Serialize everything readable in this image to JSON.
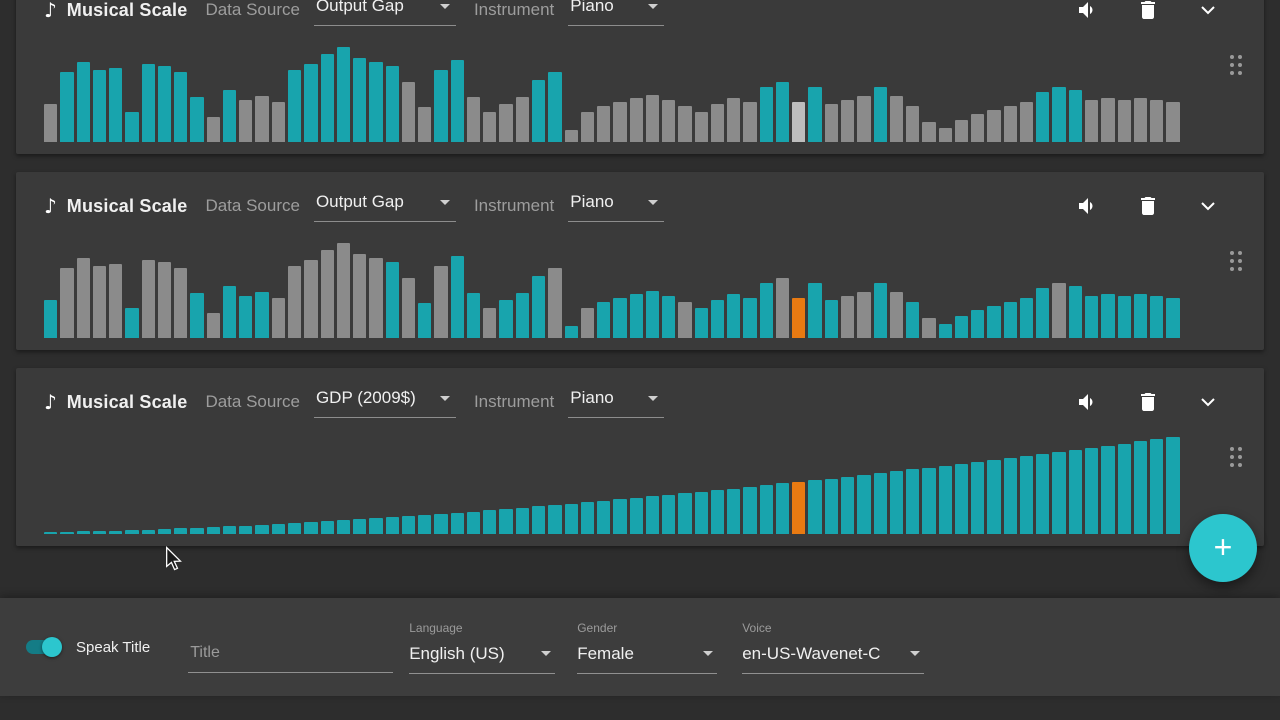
{
  "colors": {
    "t": "#18a4ad",
    "g": "#8b8b8b",
    "l": "#bdbdbd",
    "o": "#e87a12",
    "accent": "#2cc6ce"
  },
  "panels": [
    {
      "title": "Musical Scale",
      "data_source_label": "Data Source",
      "data_source_value": "Output Gap",
      "instrument_label": "Instrument",
      "instrument_value": "Piano",
      "chart_data": {
        "type": "bar",
        "bars": [
          [
            38,
            "g"
          ],
          [
            70,
            "t"
          ],
          [
            80,
            "t"
          ],
          [
            72,
            "t"
          ],
          [
            74,
            "t"
          ],
          [
            30,
            "t"
          ],
          [
            78,
            "t"
          ],
          [
            76,
            "t"
          ],
          [
            70,
            "t"
          ],
          [
            45,
            "t"
          ],
          [
            25,
            "g"
          ],
          [
            52,
            "t"
          ],
          [
            42,
            "g"
          ],
          [
            46,
            "g"
          ],
          [
            40,
            "g"
          ],
          [
            72,
            "t"
          ],
          [
            78,
            "t"
          ],
          [
            88,
            "t"
          ],
          [
            95,
            "t"
          ],
          [
            84,
            "t"
          ],
          [
            80,
            "t"
          ],
          [
            76,
            "t"
          ],
          [
            60,
            "g"
          ],
          [
            35,
            "g"
          ],
          [
            72,
            "t"
          ],
          [
            82,
            "t"
          ],
          [
            45,
            "g"
          ],
          [
            30,
            "g"
          ],
          [
            38,
            "g"
          ],
          [
            45,
            "g"
          ],
          [
            62,
            "t"
          ],
          [
            70,
            "t"
          ],
          [
            12,
            "g"
          ],
          [
            30,
            "g"
          ],
          [
            36,
            "g"
          ],
          [
            40,
            "g"
          ],
          [
            44,
            "g"
          ],
          [
            47,
            "g"
          ],
          [
            42,
            "g"
          ],
          [
            36,
            "g"
          ],
          [
            30,
            "g"
          ],
          [
            38,
            "g"
          ],
          [
            44,
            "g"
          ],
          [
            40,
            "g"
          ],
          [
            55,
            "t"
          ],
          [
            60,
            "t"
          ],
          [
            40,
            "l"
          ],
          [
            55,
            "t"
          ],
          [
            38,
            "g"
          ],
          [
            42,
            "g"
          ],
          [
            46,
            "g"
          ],
          [
            55,
            "t"
          ],
          [
            46,
            "g"
          ],
          [
            36,
            "g"
          ],
          [
            20,
            "g"
          ],
          [
            14,
            "g"
          ],
          [
            22,
            "g"
          ],
          [
            28,
            "g"
          ],
          [
            32,
            "g"
          ],
          [
            36,
            "g"
          ],
          [
            40,
            "g"
          ],
          [
            50,
            "t"
          ],
          [
            55,
            "t"
          ],
          [
            52,
            "t"
          ],
          [
            42,
            "g"
          ],
          [
            44,
            "g"
          ],
          [
            42,
            "g"
          ],
          [
            44,
            "g"
          ],
          [
            42,
            "g"
          ],
          [
            40,
            "g"
          ]
        ]
      }
    },
    {
      "title": "Musical Scale",
      "data_source_label": "Data Source",
      "data_source_value": "Output Gap",
      "instrument_label": "Instrument",
      "instrument_value": "Piano",
      "chart_data": {
        "type": "bar",
        "bars": [
          [
            38,
            "t"
          ],
          [
            70,
            "g"
          ],
          [
            80,
            "g"
          ],
          [
            72,
            "g"
          ],
          [
            74,
            "g"
          ],
          [
            30,
            "t"
          ],
          [
            78,
            "g"
          ],
          [
            76,
            "g"
          ],
          [
            70,
            "g"
          ],
          [
            45,
            "t"
          ],
          [
            25,
            "g"
          ],
          [
            52,
            "t"
          ],
          [
            42,
            "t"
          ],
          [
            46,
            "t"
          ],
          [
            40,
            "g"
          ],
          [
            72,
            "g"
          ],
          [
            78,
            "g"
          ],
          [
            88,
            "g"
          ],
          [
            95,
            "g"
          ],
          [
            84,
            "g"
          ],
          [
            80,
            "g"
          ],
          [
            76,
            "t"
          ],
          [
            60,
            "g"
          ],
          [
            35,
            "t"
          ],
          [
            72,
            "g"
          ],
          [
            82,
            "t"
          ],
          [
            45,
            "t"
          ],
          [
            30,
            "g"
          ],
          [
            38,
            "t"
          ],
          [
            45,
            "t"
          ],
          [
            62,
            "t"
          ],
          [
            70,
            "g"
          ],
          [
            12,
            "t"
          ],
          [
            30,
            "g"
          ],
          [
            36,
            "t"
          ],
          [
            40,
            "t"
          ],
          [
            44,
            "t"
          ],
          [
            47,
            "t"
          ],
          [
            42,
            "t"
          ],
          [
            36,
            "g"
          ],
          [
            30,
            "t"
          ],
          [
            38,
            "t"
          ],
          [
            44,
            "t"
          ],
          [
            40,
            "t"
          ],
          [
            55,
            "t"
          ],
          [
            60,
            "g"
          ],
          [
            40,
            "o"
          ],
          [
            55,
            "t"
          ],
          [
            38,
            "t"
          ],
          [
            42,
            "g"
          ],
          [
            46,
            "g"
          ],
          [
            55,
            "t"
          ],
          [
            46,
            "g"
          ],
          [
            36,
            "t"
          ],
          [
            20,
            "g"
          ],
          [
            14,
            "t"
          ],
          [
            22,
            "t"
          ],
          [
            28,
            "t"
          ],
          [
            32,
            "t"
          ],
          [
            36,
            "t"
          ],
          [
            40,
            "t"
          ],
          [
            50,
            "t"
          ],
          [
            55,
            "g"
          ],
          [
            52,
            "t"
          ],
          [
            42,
            "t"
          ],
          [
            44,
            "t"
          ],
          [
            42,
            "t"
          ],
          [
            44,
            "t"
          ],
          [
            42,
            "t"
          ],
          [
            40,
            "t"
          ]
        ]
      }
    },
    {
      "title": "Musical Scale",
      "data_source_label": "Data Source",
      "data_source_value": "GDP (2009$)",
      "instrument_label": "Instrument",
      "instrument_value": "Piano",
      "chart_data": {
        "type": "bar",
        "bars": [
          [
            2,
            "t"
          ],
          [
            2,
            "t"
          ],
          [
            3,
            "t"
          ],
          [
            3,
            "t"
          ],
          [
            3,
            "t"
          ],
          [
            4,
            "t"
          ],
          [
            4,
            "t"
          ],
          [
            5,
            "t"
          ],
          [
            6,
            "t"
          ],
          [
            6,
            "t"
          ],
          [
            7,
            "t"
          ],
          [
            8,
            "t"
          ],
          [
            8,
            "t"
          ],
          [
            9,
            "t"
          ],
          [
            10,
            "t"
          ],
          [
            11,
            "t"
          ],
          [
            12,
            "t"
          ],
          [
            13,
            "t"
          ],
          [
            14,
            "t"
          ],
          [
            15,
            "t"
          ],
          [
            16,
            "t"
          ],
          [
            17,
            "t"
          ],
          [
            18,
            "t"
          ],
          [
            19,
            "t"
          ],
          [
            20,
            "t"
          ],
          [
            21,
            "t"
          ],
          [
            22,
            "t"
          ],
          [
            24,
            "t"
          ],
          [
            25,
            "t"
          ],
          [
            26,
            "t"
          ],
          [
            28,
            "t"
          ],
          [
            29,
            "t"
          ],
          [
            30,
            "t"
          ],
          [
            32,
            "t"
          ],
          [
            33,
            "t"
          ],
          [
            35,
            "t"
          ],
          [
            36,
            "t"
          ],
          [
            38,
            "t"
          ],
          [
            39,
            "t"
          ],
          [
            41,
            "t"
          ],
          [
            42,
            "t"
          ],
          [
            44,
            "t"
          ],
          [
            45,
            "t"
          ],
          [
            47,
            "t"
          ],
          [
            49,
            "t"
          ],
          [
            51,
            "t"
          ],
          [
            52,
            "o"
          ],
          [
            54,
            "t"
          ],
          [
            55,
            "t"
          ],
          [
            57,
            "t"
          ],
          [
            59,
            "t"
          ],
          [
            61,
            "t"
          ],
          [
            63,
            "t"
          ],
          [
            65,
            "t"
          ],
          [
            66,
            "t"
          ],
          [
            68,
            "t"
          ],
          [
            70,
            "t"
          ],
          [
            72,
            "t"
          ],
          [
            74,
            "t"
          ],
          [
            76,
            "t"
          ],
          [
            78,
            "t"
          ],
          [
            80,
            "t"
          ],
          [
            82,
            "t"
          ],
          [
            84,
            "t"
          ],
          [
            86,
            "t"
          ],
          [
            88,
            "t"
          ],
          [
            90,
            "t"
          ],
          [
            93,
            "t"
          ],
          [
            95,
            "t"
          ],
          [
            97,
            "t"
          ]
        ]
      }
    }
  ],
  "fab": {
    "plus_label": "+"
  },
  "bottom_bar": {
    "speak_title_label": "Speak Title",
    "title_placeholder": "Title",
    "language_label": "Language",
    "language_value": "English (US)",
    "gender_label": "Gender",
    "gender_value": "Female",
    "voice_label": "Voice",
    "voice_value": "en-US-Wavenet-C"
  }
}
